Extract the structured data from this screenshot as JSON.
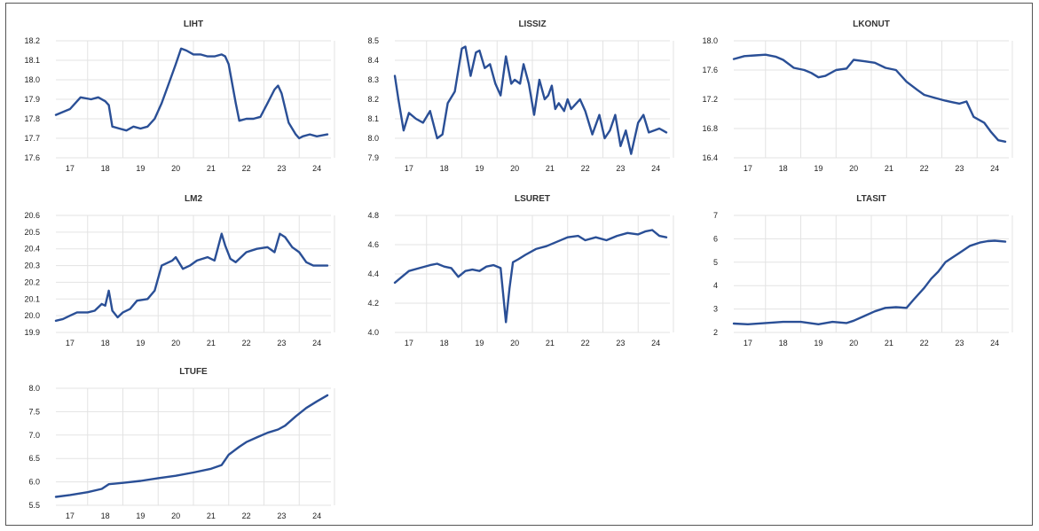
{
  "chart_data": [
    {
      "type": "line",
      "title": "LIHT",
      "ylim": [
        17.6,
        18.2
      ],
      "yticks": [
        "17.6",
        "17.7",
        "17.8",
        "17.9",
        "18.0",
        "18.1",
        "18.2"
      ],
      "xlim": [
        2016.6,
        2024.4
      ],
      "xticks": [
        "17",
        "18",
        "19",
        "20",
        "21",
        "22",
        "23",
        "24"
      ],
      "grid": true,
      "series": [
        {
          "x": [
            2016.6,
            2017.0,
            2017.3,
            2017.6,
            2017.8,
            2018.0,
            2018.1,
            2018.2,
            2018.4,
            2018.6,
            2018.8,
            2019.0,
            2019.2,
            2019.4,
            2019.6,
            2019.8,
            2020.0,
            2020.15,
            2020.3,
            2020.5,
            2020.7,
            2020.9,
            2021.1,
            2021.3,
            2021.4,
            2021.5,
            2021.7,
            2021.8,
            2022.0,
            2022.2,
            2022.4,
            2022.6,
            2022.8,
            2022.9,
            2023.0,
            2023.2,
            2023.4,
            2023.5,
            2023.6,
            2023.8,
            2024.0,
            2024.3
          ],
          "values": [
            17.82,
            17.85,
            17.91,
            17.9,
            17.91,
            17.89,
            17.87,
            17.76,
            17.75,
            17.74,
            17.76,
            17.75,
            17.76,
            17.8,
            17.88,
            17.98,
            18.08,
            18.16,
            18.15,
            18.13,
            18.13,
            18.12,
            18.12,
            18.13,
            18.12,
            18.08,
            17.88,
            17.79,
            17.8,
            17.8,
            17.81,
            17.88,
            17.95,
            17.97,
            17.93,
            17.78,
            17.72,
            17.7,
            17.71,
            17.72,
            17.71,
            17.72
          ]
        }
      ]
    },
    {
      "type": "line",
      "title": "LISSIZ",
      "ylim": [
        7.9,
        8.5
      ],
      "yticks": [
        "7.9",
        "8.0",
        "8.1",
        "8.2",
        "8.3",
        "8.4",
        "8.5"
      ],
      "xlim": [
        2016.6,
        2024.4
      ],
      "xticks": [
        "17",
        "18",
        "19",
        "20",
        "21",
        "22",
        "23",
        "24"
      ],
      "grid": true,
      "series": [
        {
          "x": [
            2016.6,
            2016.7,
            2016.85,
            2017.0,
            2017.2,
            2017.4,
            2017.6,
            2017.8,
            2017.95,
            2018.1,
            2018.3,
            2018.5,
            2018.6,
            2018.75,
            2018.9,
            2019.0,
            2019.15,
            2019.3,
            2019.45,
            2019.6,
            2019.75,
            2019.9,
            2020.0,
            2020.15,
            2020.25,
            2020.4,
            2020.55,
            2020.7,
            2020.85,
            2020.95,
            2021.05,
            2021.15,
            2021.25,
            2021.4,
            2021.5,
            2021.6,
            2021.75,
            2021.85,
            2022.0,
            2022.2,
            2022.4,
            2022.55,
            2022.7,
            2022.85,
            2023.0,
            2023.15,
            2023.3,
            2023.5,
            2023.65,
            2023.8,
            2023.95,
            2024.1,
            2024.2,
            2024.3
          ],
          "values": [
            8.32,
            8.2,
            8.04,
            8.13,
            8.1,
            8.08,
            8.14,
            8.0,
            8.02,
            8.18,
            8.24,
            8.46,
            8.47,
            8.32,
            8.44,
            8.45,
            8.36,
            8.38,
            8.28,
            8.22,
            8.42,
            8.28,
            8.3,
            8.28,
            8.38,
            8.28,
            8.12,
            8.3,
            8.2,
            8.22,
            8.27,
            8.15,
            8.18,
            8.14,
            8.2,
            8.15,
            8.18,
            8.2,
            8.14,
            8.02,
            8.12,
            8.0,
            8.04,
            8.12,
            7.96,
            8.04,
            7.92,
            8.08,
            8.12,
            8.03,
            8.04,
            8.05,
            8.04,
            8.03
          ]
        }
      ]
    },
    {
      "type": "line",
      "title": "LKONUT",
      "ylim": [
        16.4,
        18.0
      ],
      "yticks": [
        "16.4",
        "16.8",
        "17.2",
        "17.6",
        "18.0"
      ],
      "xlim": [
        2016.6,
        2024.4
      ],
      "xticks": [
        "17",
        "18",
        "19",
        "20",
        "21",
        "22",
        "23",
        "24"
      ],
      "grid": true,
      "series": [
        {
          "x": [
            2016.6,
            2016.9,
            2017.2,
            2017.5,
            2017.8,
            2018.0,
            2018.3,
            2018.6,
            2018.8,
            2019.0,
            2019.2,
            2019.5,
            2019.8,
            2020.0,
            2020.3,
            2020.6,
            2020.9,
            2021.2,
            2021.5,
            2021.8,
            2022.0,
            2022.3,
            2022.6,
            2022.8,
            2023.0,
            2023.2,
            2023.4,
            2023.7,
            2023.9,
            2024.1,
            2024.3
          ],
          "values": [
            17.75,
            17.79,
            17.8,
            17.81,
            17.78,
            17.74,
            17.63,
            17.6,
            17.56,
            17.5,
            17.52,
            17.6,
            17.62,
            17.74,
            17.72,
            17.7,
            17.63,
            17.6,
            17.44,
            17.33,
            17.26,
            17.22,
            17.18,
            17.16,
            17.14,
            17.17,
            16.96,
            16.88,
            16.75,
            16.64,
            16.62
          ]
        }
      ]
    },
    {
      "type": "line",
      "title": "LM2",
      "ylim": [
        19.9,
        20.6
      ],
      "yticks": [
        "19.9",
        "20.0",
        "20.1",
        "20.2",
        "20.3",
        "20.4",
        "20.5",
        "20.6"
      ],
      "xlim": [
        2016.6,
        2024.4
      ],
      "xticks": [
        "17",
        "18",
        "19",
        "20",
        "21",
        "22",
        "23",
        "24"
      ],
      "grid": true,
      "series": [
        {
          "x": [
            2016.6,
            2016.8,
            2017.0,
            2017.2,
            2017.5,
            2017.7,
            2017.9,
            2018.0,
            2018.1,
            2018.2,
            2018.35,
            2018.5,
            2018.7,
            2018.9,
            2019.2,
            2019.4,
            2019.6,
            2019.8,
            2019.9,
            2020.0,
            2020.2,
            2020.4,
            2020.6,
            2020.9,
            2021.1,
            2021.3,
            2021.4,
            2021.55,
            2021.7,
            2022.0,
            2022.3,
            2022.6,
            2022.8,
            2022.95,
            2023.1,
            2023.3,
            2023.5,
            2023.7,
            2023.9,
            2024.1,
            2024.3
          ],
          "values": [
            19.97,
            19.98,
            20.0,
            20.02,
            20.02,
            20.03,
            20.07,
            20.06,
            20.15,
            20.03,
            19.99,
            20.02,
            20.04,
            20.09,
            20.1,
            20.15,
            20.3,
            20.32,
            20.33,
            20.35,
            20.28,
            20.3,
            20.33,
            20.35,
            20.33,
            20.49,
            20.42,
            20.34,
            20.32,
            20.38,
            20.4,
            20.41,
            20.38,
            20.49,
            20.47,
            20.41,
            20.38,
            20.32,
            20.3,
            20.3,
            20.3
          ]
        }
      ]
    },
    {
      "type": "line",
      "title": "LSURET",
      "ylim": [
        4.0,
        4.8
      ],
      "yticks": [
        "4.0",
        "4.2",
        "4.4",
        "4.6",
        "4.8"
      ],
      "xlim": [
        2016.6,
        2024.4
      ],
      "xticks": [
        "17",
        "18",
        "19",
        "20",
        "21",
        "22",
        "23",
        "24"
      ],
      "grid": true,
      "series": [
        {
          "x": [
            2016.6,
            2016.8,
            2017.0,
            2017.3,
            2017.6,
            2017.8,
            2018.0,
            2018.2,
            2018.4,
            2018.6,
            2018.8,
            2019.0,
            2019.2,
            2019.4,
            2019.6,
            2019.75,
            2019.85,
            2019.95,
            2020.1,
            2020.3,
            2020.6,
            2020.9,
            2021.2,
            2021.5,
            2021.8,
            2022.0,
            2022.3,
            2022.6,
            2022.9,
            2023.2,
            2023.5,
            2023.7,
            2023.9,
            2024.1,
            2024.3
          ],
          "values": [
            4.34,
            4.38,
            4.42,
            4.44,
            4.46,
            4.47,
            4.45,
            4.44,
            4.38,
            4.42,
            4.43,
            4.42,
            4.45,
            4.46,
            4.44,
            4.07,
            4.3,
            4.48,
            4.5,
            4.53,
            4.57,
            4.59,
            4.62,
            4.65,
            4.66,
            4.63,
            4.65,
            4.63,
            4.66,
            4.68,
            4.67,
            4.69,
            4.7,
            4.66,
            4.65
          ]
        }
      ]
    },
    {
      "type": "line",
      "title": "LTASIT",
      "ylim": [
        2,
        7
      ],
      "yticks": [
        "2",
        "3",
        "4",
        "5",
        "6",
        "7"
      ],
      "xlim": [
        2016.6,
        2024.4
      ],
      "xticks": [
        "17",
        "18",
        "19",
        "20",
        "21",
        "22",
        "23",
        "24"
      ],
      "grid": true,
      "series": [
        {
          "x": [
            2016.6,
            2017.0,
            2017.5,
            2018.0,
            2018.5,
            2019.0,
            2019.4,
            2019.8,
            2020.0,
            2020.3,
            2020.6,
            2020.9,
            2021.2,
            2021.5,
            2021.7,
            2022.0,
            2022.2,
            2022.4,
            2022.6,
            2022.8,
            2023.0,
            2023.3,
            2023.6,
            2023.8,
            2024.0,
            2024.3
          ],
          "values": [
            2.38,
            2.35,
            2.4,
            2.45,
            2.45,
            2.35,
            2.45,
            2.4,
            2.5,
            2.7,
            2.9,
            3.05,
            3.08,
            3.05,
            3.4,
            3.9,
            4.3,
            4.6,
            5.0,
            5.2,
            5.4,
            5.7,
            5.85,
            5.9,
            5.92,
            5.88
          ]
        }
      ]
    },
    {
      "type": "line",
      "title": "LTUFE",
      "ylim": [
        5.5,
        8.0
      ],
      "yticks": [
        "5.5",
        "6.0",
        "6.5",
        "7.0",
        "7.5",
        "8.0"
      ],
      "xlim": [
        2016.6,
        2024.4
      ],
      "xticks": [
        "17",
        "18",
        "19",
        "20",
        "21",
        "22",
        "23",
        "24"
      ],
      "grid": true,
      "series": [
        {
          "x": [
            2016.6,
            2017.0,
            2017.5,
            2017.9,
            2018.1,
            2018.5,
            2019.0,
            2019.5,
            2020.0,
            2020.5,
            2021.0,
            2021.3,
            2021.5,
            2021.8,
            2022.0,
            2022.3,
            2022.6,
            2022.9,
            2023.1,
            2023.4,
            2023.7,
            2024.0,
            2024.3
          ],
          "values": [
            5.68,
            5.72,
            5.78,
            5.85,
            5.95,
            5.98,
            6.02,
            6.08,
            6.13,
            6.2,
            6.28,
            6.36,
            6.58,
            6.75,
            6.85,
            6.95,
            7.05,
            7.12,
            7.2,
            7.4,
            7.58,
            7.72,
            7.85
          ]
        }
      ]
    }
  ]
}
